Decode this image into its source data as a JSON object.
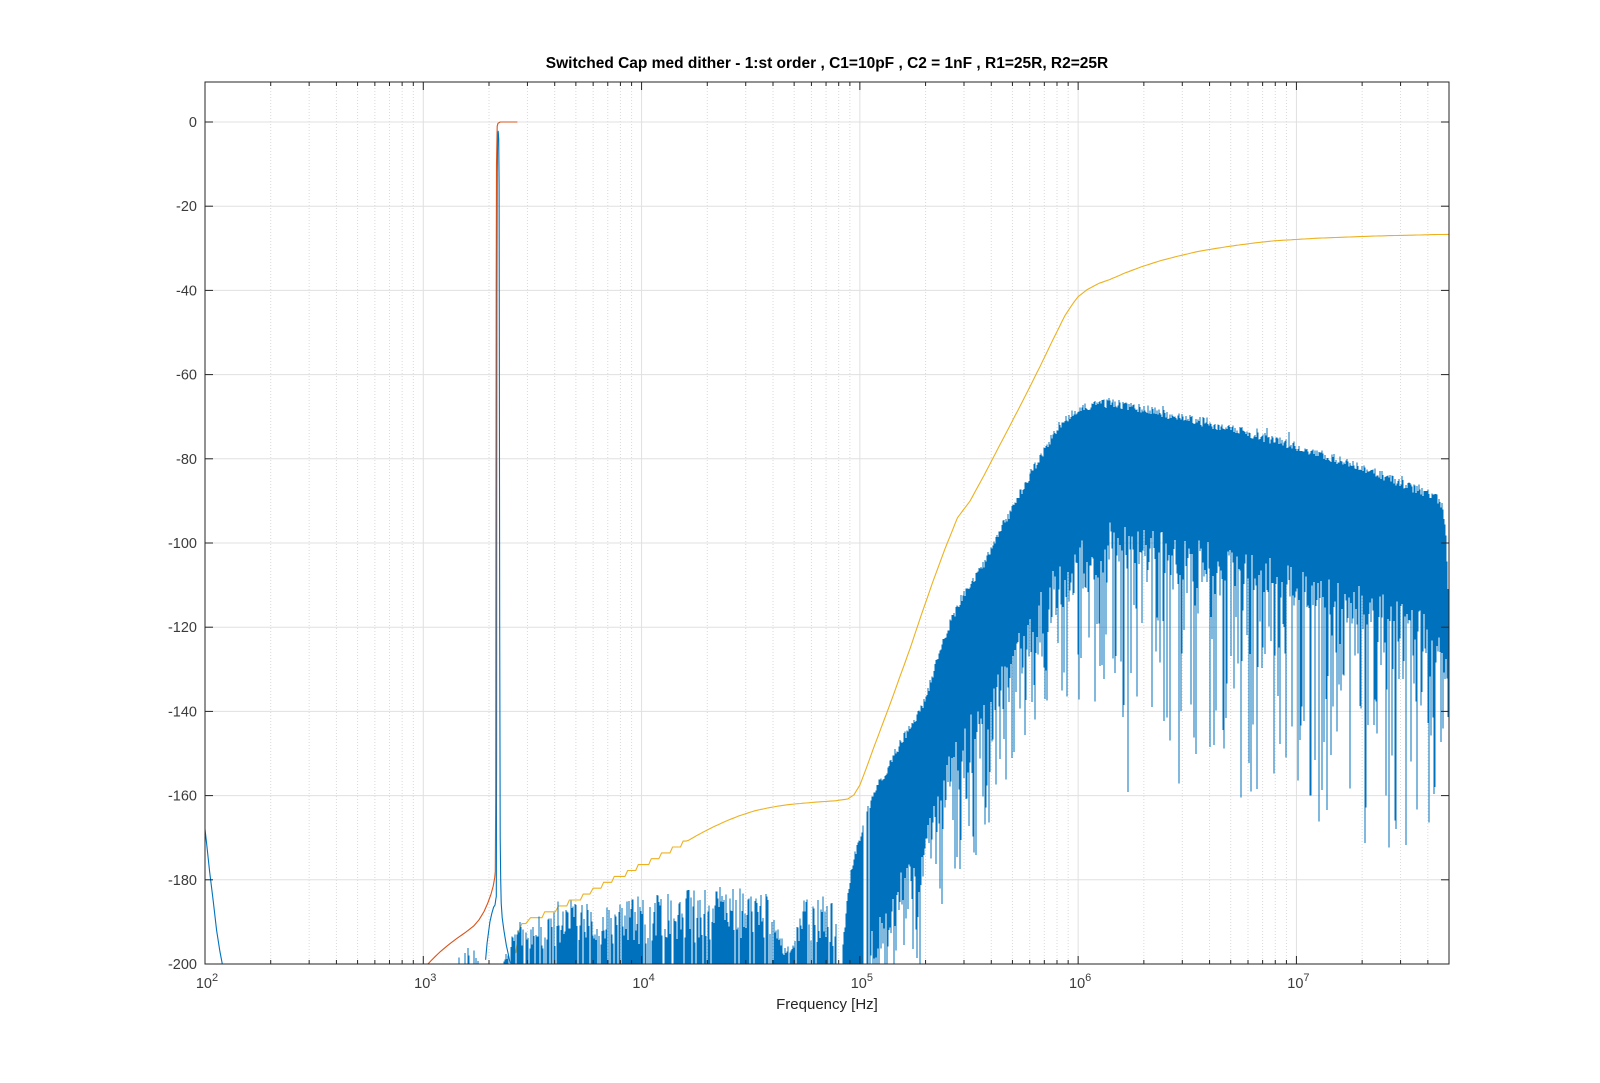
{
  "chart_data": {
    "type": "line",
    "title": "Switched Cap med dither - 1:st order , C1=10pF , C2 = 1nF , R1=25R, R2=25R",
    "xlabel": "Frequency [Hz]",
    "ylabel": "",
    "x_scale": "log",
    "xlim": [
      100,
      50000000
    ],
    "ylim": [
      -200,
      9.5
    ],
    "x_major_tick_exponents": [
      2,
      3,
      4,
      5,
      6,
      7
    ],
    "x_minor_multipliers": [
      2,
      3,
      4,
      5,
      6,
      7,
      8,
      9
    ],
    "y_ticks": [
      0,
      -20,
      -40,
      -60,
      -80,
      -100,
      -120,
      -140,
      -160,
      -180,
      -200
    ],
    "grid": {
      "major_on": true,
      "minor_on": true,
      "legend": "none"
    },
    "colors": {
      "series_blue": "#0072BD",
      "series_red": "#D95319",
      "series_yellow": "#EDB120",
      "grid_major": "#E0E0E0",
      "grid_minor": "#D9D9D9",
      "axis": "#262626",
      "tick_text": "#3b3b3b",
      "background": "#ffffff"
    },
    "series": [
      {
        "name": "output-spectrum-left-edge-spike",
        "color_key": "series_blue",
        "kind": "polyline",
        "points": [
          [
            100,
            -168
          ],
          [
            102,
            -172
          ],
          [
            105,
            -178
          ],
          [
            109,
            -185
          ],
          [
            113,
            -192
          ],
          [
            117,
            -197
          ],
          [
            120,
            -200
          ]
        ]
      },
      {
        "name": "output-spectrum-signal-peak",
        "color_key": "series_blue",
        "kind": "polyline",
        "points": [
          [
            1930,
            -199
          ],
          [
            1960,
            -195
          ],
          [
            1990,
            -192.5
          ],
          [
            2020,
            -190
          ],
          [
            2060,
            -188
          ],
          [
            2100,
            -186.5
          ],
          [
            2130,
            -186
          ],
          [
            2152,
            -184.5
          ],
          [
            2160,
            -184
          ],
          [
            2166,
            -150
          ],
          [
            2170,
            -90
          ],
          [
            2174,
            -40
          ],
          [
            2180,
            -12
          ],
          [
            2192,
            -2.8
          ],
          [
            2205,
            -2.2
          ],
          [
            2215,
            -4
          ],
          [
            2224,
            -15
          ],
          [
            2230,
            -45
          ],
          [
            2235,
            -85
          ],
          [
            2240,
            -120
          ],
          [
            2246,
            -150
          ],
          [
            2252,
            -170
          ],
          [
            2262,
            -180
          ],
          [
            2275,
            -185.5
          ],
          [
            2300,
            -189
          ],
          [
            2340,
            -192
          ],
          [
            2400,
            -195.5
          ],
          [
            2460,
            -198
          ],
          [
            2500,
            -199.8
          ]
        ]
      },
      {
        "name": "signal-reference",
        "color_key": "series_red",
        "kind": "polyline",
        "points": [
          [
            1050,
            -200
          ],
          [
            1120,
            -198.5
          ],
          [
            1200,
            -197
          ],
          [
            1300,
            -195.5
          ],
          [
            1420,
            -194
          ],
          [
            1560,
            -192.5
          ],
          [
            1700,
            -191
          ],
          [
            1800,
            -189.5
          ],
          [
            1900,
            -187.5
          ],
          [
            1975,
            -185.5
          ],
          [
            2040,
            -183.5
          ],
          [
            2090,
            -181.5
          ],
          [
            2125,
            -179.5
          ],
          [
            2138,
            -178
          ],
          [
            2146,
            -160
          ],
          [
            2152,
            -100
          ],
          [
            2158,
            -40
          ],
          [
            2165,
            -10
          ],
          [
            2180,
            -1
          ],
          [
            2200,
            -0.3
          ],
          [
            2250,
            0
          ],
          [
            2700,
            0
          ]
        ]
      },
      {
        "name": "integrated-noise",
        "color_key": "series_yellow",
        "kind": "polyline",
        "staircase_below_f": 16000,
        "staircase_step_db": 1.4,
        "points": [
          [
            2650,
            -197.5
          ],
          [
            2700,
            -194
          ],
          [
            2760,
            -191.5
          ],
          [
            2830,
            -190.8
          ],
          [
            2950,
            -190.2
          ],
          [
            3100,
            -189.6
          ],
          [
            3300,
            -189
          ],
          [
            3600,
            -188.2
          ],
          [
            3900,
            -187.4
          ],
          [
            4300,
            -186.4
          ],
          [
            4800,
            -185.2
          ],
          [
            5400,
            -183.8
          ],
          [
            6000,
            -182.6
          ],
          [
            6700,
            -181.2
          ],
          [
            7500,
            -179.8
          ],
          [
            8400,
            -178.6
          ],
          [
            9400,
            -177.4
          ],
          [
            10500,
            -176.2
          ],
          [
            12000,
            -174.6
          ],
          [
            13500,
            -173.2
          ],
          [
            15500,
            -171.4
          ],
          [
            18000,
            -169.4
          ],
          [
            21000,
            -167.6
          ],
          [
            24000,
            -166.2
          ],
          [
            28000,
            -164.8
          ],
          [
            33000,
            -163.6
          ],
          [
            39000,
            -162.8
          ],
          [
            46000,
            -162.2
          ],
          [
            55000,
            -161.8
          ],
          [
            65000,
            -161.5
          ],
          [
            78000,
            -161.2
          ],
          [
            88000,
            -160.8
          ],
          [
            94000,
            -159.8
          ],
          [
            100000,
            -157.5
          ],
          [
            107000,
            -153.5
          ],
          [
            115000,
            -149
          ],
          [
            125000,
            -144
          ],
          [
            137000,
            -138.5
          ],
          [
            152000,
            -132
          ],
          [
            170000,
            -125
          ],
          [
            190000,
            -117.5
          ],
          [
            215000,
            -109.5
          ],
          [
            245000,
            -101.5
          ],
          [
            280000,
            -94
          ],
          [
            320000,
            -90
          ],
          [
            370000,
            -84
          ],
          [
            430000,
            -77.5
          ],
          [
            500000,
            -71
          ],
          [
            580000,
            -64.5
          ],
          [
            670000,
            -58
          ],
          [
            770000,
            -51.5
          ],
          [
            870000,
            -46
          ],
          [
            950000,
            -43
          ],
          [
            1000000,
            -41.5
          ],
          [
            1100000,
            -39.8
          ],
          [
            1250000,
            -38.3
          ],
          [
            1400000,
            -37.4
          ],
          [
            1650000,
            -35.8
          ],
          [
            2000000,
            -34.2
          ],
          [
            2400000,
            -32.9
          ],
          [
            2900000,
            -31.8
          ],
          [
            3500000,
            -30.8
          ],
          [
            4300000,
            -30
          ],
          [
            5300000,
            -29.3
          ],
          [
            6500000,
            -28.7
          ],
          [
            8000000,
            -28.2
          ],
          [
            10000000,
            -27.9
          ],
          [
            12500000,
            -27.6
          ],
          [
            16000000,
            -27.4
          ],
          [
            20000000,
            -27.2
          ],
          [
            26000000,
            -27
          ],
          [
            33000000,
            -26.9
          ],
          [
            42000000,
            -26.75
          ],
          [
            50000000,
            -26.7
          ]
        ]
      },
      {
        "name": "output-spectrum-pre-peak-floor",
        "color_key": "series_blue",
        "kind": "noise_floor",
        "f_range": [
          1430,
          1900
        ],
        "skip_probability": 0.55,
        "top_envelope": [
          [
            1430,
            -199.5
          ],
          [
            1500,
            -196
          ],
          [
            1560,
            -194.5
          ],
          [
            1620,
            -195
          ],
          [
            1700,
            -196
          ],
          [
            1780,
            -198
          ],
          [
            1850,
            -199.6
          ]
        ]
      },
      {
        "name": "output-spectrum-noise-floor",
        "color_key": "series_blue",
        "kind": "noise_floor",
        "f_range": [
          2350,
          85500
        ],
        "skip_probability": 0.18,
        "top_envelope": [
          [
            2350,
            -199
          ],
          [
            2500,
            -195
          ],
          [
            2620,
            -192
          ],
          [
            2750,
            -190.5
          ],
          [
            2900,
            -191
          ],
          [
            3100,
            -190
          ],
          [
            3400,
            -189.5
          ],
          [
            3700,
            -188.5
          ],
          [
            4100,
            -186.5
          ],
          [
            4600,
            -185.8
          ],
          [
            5200,
            -186
          ],
          [
            5800,
            -186.5
          ],
          [
            6500,
            -187.2
          ],
          [
            7300,
            -187
          ],
          [
            8200,
            -186.2
          ],
          [
            9200,
            -185.6
          ],
          [
            10500,
            -185
          ],
          [
            12000,
            -184.6
          ],
          [
            14000,
            -184.2
          ],
          [
            16500,
            -183.8
          ],
          [
            19000,
            -183.2
          ],
          [
            22000,
            -182.8
          ],
          [
            26000,
            -182.5
          ],
          [
            30000,
            -182.8
          ],
          [
            34000,
            -183.2
          ],
          [
            38000,
            -184.5
          ],
          [
            41000,
            -187
          ],
          [
            43500,
            -193
          ],
          [
            46000,
            -197
          ],
          [
            48500,
            -196
          ],
          [
            51000,
            -191
          ],
          [
            54000,
            -187
          ],
          [
            58000,
            -185.5
          ],
          [
            63000,
            -184.8
          ],
          [
            68000,
            -185.2
          ],
          [
            72000,
            -186
          ],
          [
            76000,
            -187.5
          ],
          [
            80000,
            -190
          ],
          [
            83000,
            -194
          ],
          [
            85500,
            -198
          ]
        ]
      },
      {
        "name": "output-spectrum-shaped-noise-band",
        "color_key": "series_blue",
        "kind": "noise_band",
        "f_range": [
          84000,
          50000000
        ],
        "flank_limit_f": 1300000,
        "dense_depth_flank": [
          30,
          14
        ],
        "dense_depth_upper": [
          27,
          10
        ],
        "spike_probability": 0.55,
        "spike_depth_flank": 30,
        "spike_depth_upper": 55,
        "sparse_gap_f": [
          104000,
          112000
        ],
        "top_envelope": [
          [
            84000,
            -196
          ],
          [
            88000,
            -184
          ],
          [
            93000,
            -177
          ],
          [
            100000,
            -171
          ],
          [
            107000,
            -166
          ],
          [
            113000,
            -162
          ],
          [
            120000,
            -159
          ],
          [
            130000,
            -156
          ],
          [
            142000,
            -152
          ],
          [
            155000,
            -148
          ],
          [
            170000,
            -145
          ],
          [
            185000,
            -142
          ],
          [
            200000,
            -138
          ],
          [
            215000,
            -133
          ],
          [
            230000,
            -127
          ],
          [
            250000,
            -122
          ],
          [
            275000,
            -117
          ],
          [
            300000,
            -113
          ],
          [
            330000,
            -110
          ],
          [
            360000,
            -107
          ],
          [
            400000,
            -103
          ],
          [
            450000,
            -97
          ],
          [
            500000,
            -93
          ],
          [
            560000,
            -88
          ],
          [
            630000,
            -83
          ],
          [
            700000,
            -79
          ],
          [
            780000,
            -75
          ],
          [
            860000,
            -72
          ],
          [
            950000,
            -70
          ],
          [
            1050000,
            -68.8
          ],
          [
            1200000,
            -68.2
          ],
          [
            1400000,
            -68
          ],
          [
            1600000,
            -68.3
          ],
          [
            1800000,
            -68.8
          ],
          [
            2000000,
            -69.3
          ],
          [
            2300000,
            -70
          ],
          [
            2700000,
            -70.8
          ],
          [
            3200000,
            -71.6
          ],
          [
            3800000,
            -72.5
          ],
          [
            4500000,
            -73.4
          ],
          [
            5300000,
            -74.3
          ],
          [
            6200000,
            -75.2
          ],
          [
            7300000,
            -76.2
          ],
          [
            8600000,
            -77.2
          ],
          [
            10000000,
            -78.2
          ],
          [
            12000000,
            -79.4
          ],
          [
            14000000,
            -80.6
          ],
          [
            17000000,
            -82
          ],
          [
            20000000,
            -83.3
          ],
          [
            24000000,
            -84.8
          ],
          [
            28000000,
            -86.2
          ],
          [
            33000000,
            -87.7
          ],
          [
            38000000,
            -89
          ],
          [
            42000000,
            -90
          ],
          [
            45000000,
            -91
          ],
          [
            46500000,
            -92.5
          ],
          [
            47600000,
            -95
          ],
          [
            48400000,
            -99
          ],
          [
            49000000,
            -105
          ],
          [
            49500000,
            -113
          ],
          [
            49800000,
            -125
          ],
          [
            50000000,
            -160
          ]
        ]
      }
    ]
  }
}
